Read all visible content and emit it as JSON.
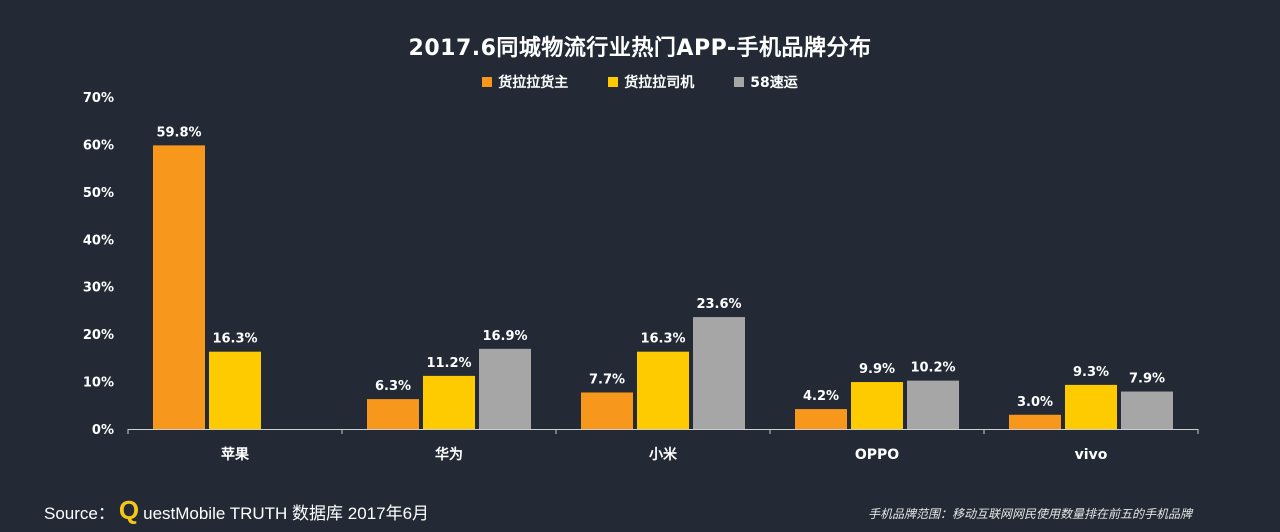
{
  "colors": {
    "background": "#232a36",
    "series_colors": [
      "#f7981d",
      "#fecb00",
      "#a6a6a6"
    ],
    "axis": "#cfcfcf"
  },
  "chart_data": {
    "type": "bar",
    "title": "2017.6同城物流行业热门APP-手机品牌分布",
    "categories": [
      "苹果",
      "华为",
      "小米",
      "OPPO",
      "vivo"
    ],
    "series": [
      {
        "name": "货拉拉货主",
        "values": [
          59.8,
          6.3,
          7.7,
          4.2,
          3.0
        ],
        "labels": [
          "59.8%",
          "6.3%",
          "7.7%",
          "4.2%",
          "3.0%"
        ]
      },
      {
        "name": "货拉拉司机",
        "values": [
          16.3,
          11.2,
          16.3,
          9.9,
          9.3
        ],
        "labels": [
          "16.3%",
          "11.2%",
          "16.3%",
          "9.9%",
          "9.3%"
        ]
      },
      {
        "name": "58速运",
        "values": [
          null,
          16.9,
          23.6,
          10.2,
          7.9
        ],
        "labels": [
          "",
          "16.9%",
          "23.6%",
          "10.2%",
          "7.9%"
        ]
      }
    ],
    "yticks": [
      "0%",
      "10%",
      "20%",
      "30%",
      "40%",
      "50%",
      "60%",
      "70%"
    ],
    "ylim": [
      0,
      70
    ],
    "legend_position": "top-center",
    "grid": false
  },
  "footer": {
    "source_label": "Source：",
    "brand_q": "Q",
    "brand_rest": "uestMobile TRUTH 数据库 2017年6月",
    "note": "手机品牌范围：移动互联网网民使用数量排在前五的手机品牌"
  }
}
